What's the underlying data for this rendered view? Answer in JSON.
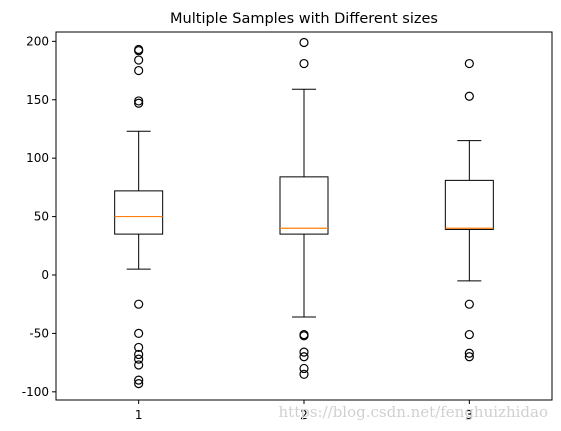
{
  "chart_data": {
    "type": "box",
    "title": "Multiple Samples with Different sizes",
    "xlabel": "",
    "ylabel": "",
    "categories": [
      "1",
      "2",
      "3"
    ],
    "ylim": [
      -107,
      208
    ],
    "yticks": [
      200,
      150,
      100,
      50,
      0,
      -50,
      -100
    ],
    "grid": false,
    "series": [
      {
        "label": "1",
        "whisker_high": 123,
        "q3": 72,
        "median": 50,
        "q1": 35,
        "whisker_low": 5,
        "outliers": [
          193,
          192,
          184,
          175,
          149,
          147,
          -25,
          -50,
          -62,
          -68,
          -72,
          -77,
          -90,
          -93
        ]
      },
      {
        "label": "2",
        "whisker_high": 159,
        "q3": 84,
        "median": 40,
        "q1": 35,
        "whisker_low": -36,
        "outliers": [
          199,
          181,
          -51,
          -52,
          -66,
          -70,
          -80,
          -85
        ]
      },
      {
        "label": "3",
        "whisker_high": 115,
        "q3": 81,
        "median": 40,
        "q1": 39,
        "whisker_low": -5,
        "outliers": [
          181,
          153,
          -25,
          -51,
          -67,
          -70
        ]
      }
    ],
    "colors": {
      "box": "#000000",
      "median": "#ff7f0e",
      "outlier": "#000000"
    }
  },
  "watermark": "https://blog.csdn.net/fenghuizhidao"
}
